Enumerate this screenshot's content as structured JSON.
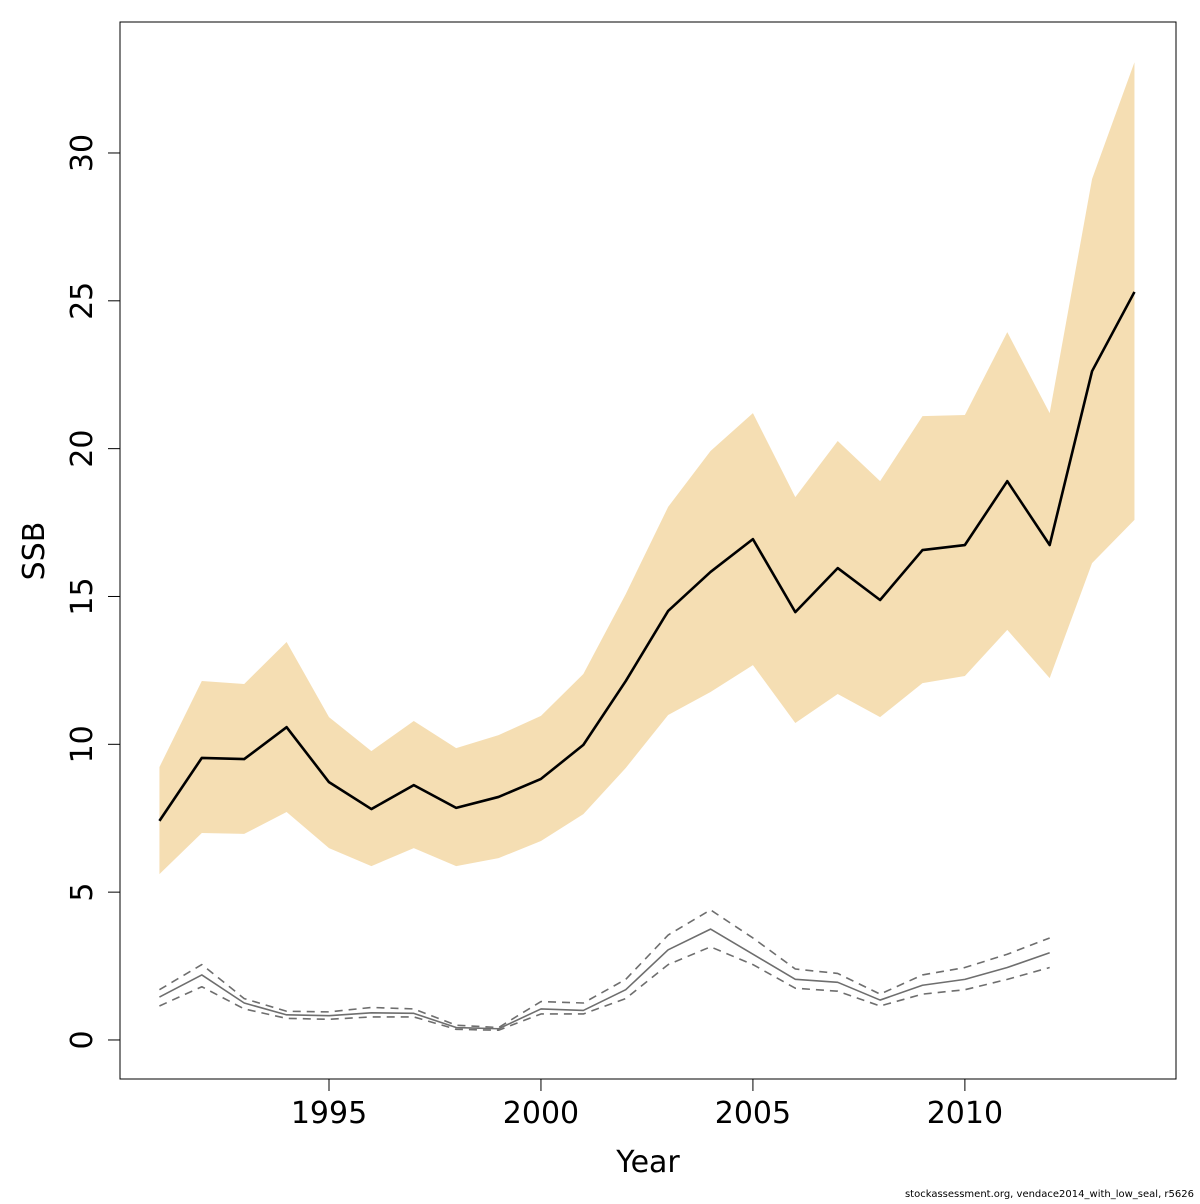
{
  "chart_data": {
    "type": "line",
    "x_label": "Year",
    "y_label": "SSB",
    "footnote": "stockassessment.org, vendace2014_with_low_seal, r5626",
    "x": [
      1991,
      1992,
      1993,
      1994,
      1995,
      1996,
      1997,
      1998,
      1999,
      2000,
      2001,
      2002,
      2003,
      2004,
      2005,
      2006,
      2007,
      2008,
      2009,
      2010,
      2011,
      2012,
      2013,
      2014
    ],
    "xlim": [
      1990.07,
      2014.98
    ],
    "xticks": [
      1995,
      2000,
      2005,
      2010
    ],
    "ylim": [
      -1.32,
      34.43
    ],
    "yticks": [
      0,
      5,
      10,
      15,
      20,
      25,
      30
    ],
    "series": [
      {
        "color": "#000000",
        "band_color": "#f5deb3",
        "style": "solid",
        "values": [
          7.41,
          9.54,
          9.5,
          10.58,
          8.72,
          7.81,
          8.62,
          7.85,
          8.22,
          8.83,
          9.98,
          12.14,
          14.51,
          15.83,
          16.94,
          14.47,
          15.96,
          14.88,
          16.57,
          16.74,
          18.9,
          16.74,
          22.62,
          25.3
        ],
        "upper": [
          9.23,
          12.14,
          12.04,
          13.46,
          10.92,
          9.77,
          10.79,
          9.87,
          10.31,
          10.96,
          12.38,
          15.08,
          18.03,
          19.92,
          21.2,
          18.36,
          20.26,
          18.9,
          21.1,
          21.14,
          23.94,
          21.2,
          29.12,
          33.07
        ],
        "lower": [
          5.61,
          7.0,
          6.97,
          7.71,
          6.49,
          5.88,
          6.49,
          5.88,
          6.15,
          6.73,
          7.64,
          9.2,
          10.99,
          11.77,
          12.68,
          10.72,
          11.7,
          10.92,
          12.07,
          12.31,
          13.87,
          12.24,
          16.13,
          17.59
        ]
      },
      {
        "color": "#6e6e6e",
        "style": "dashed-bounds",
        "values": [
          1.45,
          2.2,
          1.25,
          0.85,
          0.82,
          0.92,
          0.9,
          0.42,
          0.38,
          1.05,
          1.0,
          1.7,
          3.05,
          3.75,
          2.9,
          2.05,
          1.95,
          1.35,
          1.85,
          2.05,
          2.45,
          2.95,
          null,
          null
        ],
        "upper": [
          1.7,
          2.55,
          1.4,
          0.97,
          0.95,
          1.1,
          1.05,
          0.5,
          0.42,
          1.3,
          1.25,
          2.05,
          3.55,
          4.4,
          3.45,
          2.4,
          2.25,
          1.55,
          2.2,
          2.45,
          2.9,
          3.45,
          null,
          null
        ],
        "lower": [
          1.15,
          1.8,
          1.05,
          0.73,
          0.7,
          0.78,
          0.78,
          0.36,
          0.33,
          0.88,
          0.88,
          1.4,
          2.55,
          3.15,
          2.55,
          1.75,
          1.65,
          1.15,
          1.55,
          1.7,
          2.05,
          2.45,
          null,
          null
        ]
      }
    ]
  }
}
